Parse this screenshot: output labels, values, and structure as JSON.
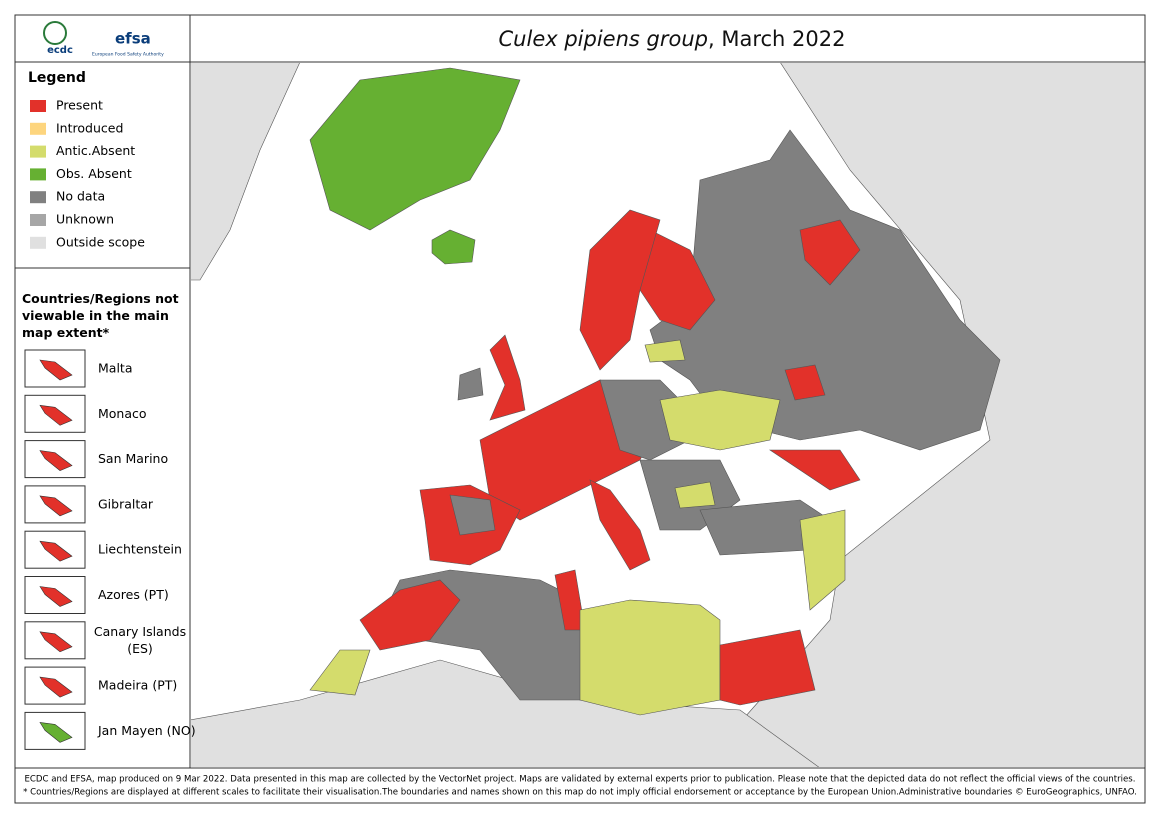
{
  "header": {
    "logo_ecdc": "ecdc",
    "logo_efsa": "efsa",
    "logo_efsa_sub": "European Food Safety Authority",
    "title_italic": "Culex pipiens group",
    "title_rest": ", March 2022"
  },
  "legend": {
    "title": "Legend",
    "items": [
      {
        "label": "Present",
        "color": "#e2312a"
      },
      {
        "label": "Introduced",
        "color": "#fdd57e"
      },
      {
        "label": "Antic.Absent",
        "color": "#d4dc6c"
      },
      {
        "label": "Obs. Absent",
        "color": "#66b032"
      },
      {
        "label": "No data",
        "color": "#808080"
      },
      {
        "label": "Unknown",
        "color": "#a6a6a6"
      },
      {
        "label": "Outside scope",
        "color": "#e0e0e0"
      }
    ]
  },
  "insets": {
    "title": "Countries/Regions not viewable in the main map extent*",
    "items": [
      "Malta",
      "Monaco",
      "San Marino",
      "Gibraltar",
      "Liechtenstein",
      "Azores (PT)",
      "Canary Islands (ES)",
      "Madeira (PT)",
      "Jan Mayen (NO)"
    ]
  },
  "footer": {
    "line1": "ECDC and EFSA, map produced on 9 Mar 2022. Data presented in this map are collected by the VectorNet project. Maps are validated by external experts prior to publication. Please note that the depicted data do not reflect the official views of the countries.",
    "line2": "* Countries/Regions are displayed at different scales to facilitate their visualisation.The boundaries and names shown on this map do not imply official endorsement or acceptance by the European Union.Administrative boundaries © EuroGeographics, UNFAO."
  }
}
